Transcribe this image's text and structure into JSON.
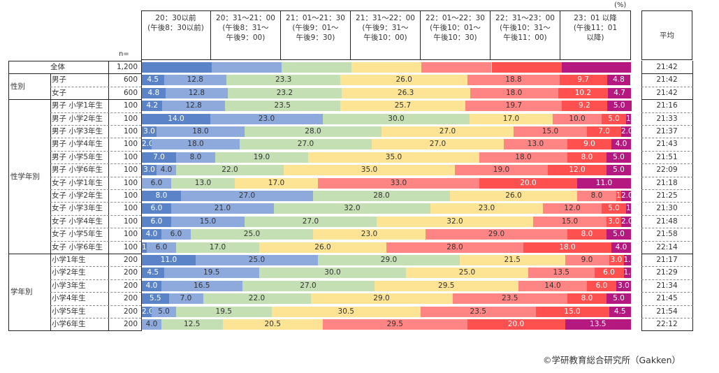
{
  "chart_data": {
    "type": "bar",
    "orientation": "horizontal",
    "stacked": true,
    "unit_label": "(%)",
    "n_label": "n=",
    "average_header": "平均",
    "series": [
      {
        "name": "20：30以前\n(午後8：30以前)",
        "color": "#5b84c8"
      },
      {
        "name": "20：31～21：00\n(午後8：31～\n午後9：00)",
        "color": "#8eaadc"
      },
      {
        "name": "21：01～21：30\n(午後9：01～\n午後9：30)",
        "color": "#c5dfb4"
      },
      {
        "name": "21：31～22：00\n(午後9：31～\n午後10：00)",
        "color": "#fde394"
      },
      {
        "name": "22：01～22：30\n(午後10：01～\n午後10：30)",
        "color": "#ff8585"
      },
      {
        "name": "22：31～23：00\n(午後10：31～\n午後11：00)",
        "color": "#ff5050"
      },
      {
        "name": "23：01 以降\n(午後11：01\n以降)",
        "color": "#b5187f"
      }
    ],
    "rows": [
      {
        "group": "",
        "label": "全体",
        "n": "1,200",
        "values": [
          14.3,
          14.3,
          14.3,
          14.3,
          14.3,
          14.3,
          14.2
        ],
        "show_labels": false,
        "average": "21:42"
      },
      {
        "group": "性別",
        "label": "男子",
        "n": "600",
        "values": [
          4.5,
          12.8,
          23.3,
          26.0,
          18.8,
          9.7,
          4.8
        ],
        "average": "21:42"
      },
      {
        "group": "性別",
        "label": "女子",
        "n": "600",
        "values": [
          4.8,
          12.8,
          23.2,
          26.3,
          18.0,
          10.2,
          4.7
        ],
        "average": "21:42"
      },
      {
        "group": "性学年別",
        "label": "男子  小学1年生",
        "n": "100",
        "values": [
          4.2,
          12.8,
          23.5,
          25.7,
          19.7,
          9.2,
          5.0
        ],
        "average": "21:16"
      },
      {
        "group": "性学年別",
        "label": "男子  小学2年生",
        "n": "100",
        "values": [
          14.0,
          23.0,
          30.0,
          17.0,
          10.0,
          5.0,
          1.0
        ],
        "average": "21:33"
      },
      {
        "group": "性学年別",
        "label": "男子  小学3年生",
        "n": "100",
        "values": [
          3.0,
          18.0,
          28.0,
          27.0,
          15.0,
          7.0,
          2.0
        ],
        "average": "21:37"
      },
      {
        "group": "性学年別",
        "label": "男子  小学4年生",
        "n": "100",
        "values": [
          2.0,
          18.0,
          27.0,
          27.0,
          13.0,
          9.0,
          4.0
        ],
        "average": "21:43"
      },
      {
        "group": "性学年別",
        "label": "男子  小学5年生",
        "n": "100",
        "values": [
          7.0,
          8.0,
          19.0,
          35.0,
          18.0,
          8.0,
          5.0
        ],
        "average": "21:51"
      },
      {
        "group": "性学年別",
        "label": "男子  小学6年生",
        "n": "100",
        "values": [
          3.0,
          4.0,
          22.0,
          35.0,
          19.0,
          12.0,
          5.0
        ],
        "average": "22:09"
      },
      {
        "group": "性学年別",
        "label": "女子  小学1年生",
        "n": "100",
        "values": [
          0.0,
          6.0,
          13.0,
          17.0,
          33.0,
          20.0,
          11.0
        ],
        "average": "21:18"
      },
      {
        "group": "性学年別",
        "label": "女子  小学2年生",
        "n": "100",
        "values": [
          8.0,
          27.0,
          28.0,
          26.0,
          8.0,
          1.0,
          2.0
        ],
        "average": "21:25"
      },
      {
        "group": "性学年別",
        "label": "女子  小学3年生",
        "n": "100",
        "values": [
          6.0,
          21.0,
          32.0,
          23.0,
          12.0,
          5.0,
          1.0
        ],
        "average": "21:30"
      },
      {
        "group": "性学年別",
        "label": "女子  小学4年生",
        "n": "100",
        "values": [
          6.0,
          15.0,
          27.0,
          32.0,
          15.0,
          3.0,
          2.0
        ],
        "average": "21:48"
      },
      {
        "group": "性学年別",
        "label": "女子  小学5年生",
        "n": "100",
        "values": [
          4.0,
          6.0,
          25.0,
          23.0,
          29.0,
          8.0,
          5.0
        ],
        "average": "21:58"
      },
      {
        "group": "性学年別",
        "label": "女子  小学6年生",
        "n": "100",
        "values": [
          1.0,
          6.0,
          17.0,
          26.0,
          28.0,
          18.0,
          4.0
        ],
        "average": "22:14"
      },
      {
        "group": "学年別",
        "label": "小学1年生",
        "n": "200",
        "values": [
          11.0,
          25.0,
          29.0,
          21.5,
          9.0,
          3.0,
          1.5
        ],
        "average": "21:17"
      },
      {
        "group": "学年別",
        "label": "小学2年生",
        "n": "200",
        "values": [
          4.5,
          19.5,
          30.0,
          25.0,
          13.5,
          6.0,
          1.5
        ],
        "average": "21:29"
      },
      {
        "group": "学年別",
        "label": "小学3年生",
        "n": "200",
        "values": [
          4.0,
          16.5,
          27.0,
          29.5,
          14.0,
          6.0,
          3.0
        ],
        "average": "21:34"
      },
      {
        "group": "学年別",
        "label": "小学4年生",
        "n": "200",
        "values": [
          5.5,
          7.0,
          22.0,
          29.0,
          23.5,
          8.0,
          5.0
        ],
        "average": "21:45"
      },
      {
        "group": "学年別",
        "label": "小学5年生",
        "n": "200",
        "values": [
          2.0,
          5.0,
          19.5,
          30.5,
          23.5,
          15.0,
          4.5
        ],
        "average": "21:54"
      },
      {
        "group": "学年別",
        "label": "小学6年生",
        "n": "200",
        "values": [
          0.0,
          4.0,
          12.5,
          20.5,
          29.5,
          20.0,
          13.5
        ],
        "average": "22:12"
      }
    ],
    "groups": [
      {
        "name": "性別",
        "rows": 2
      },
      {
        "name": "性学年別",
        "rows": 12
      },
      {
        "name": "学年別",
        "rows": 6
      }
    ],
    "xlim": [
      0,
      100
    ],
    "legend": "top (column headers)"
  },
  "credit": "©学研教育総合研究所（Gakken）"
}
